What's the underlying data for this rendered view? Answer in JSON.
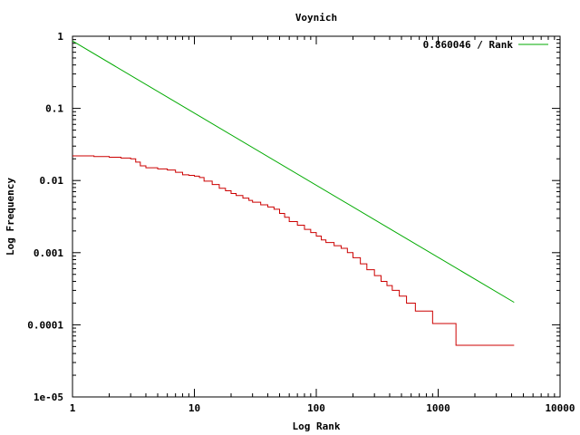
{
  "chart_data": {
    "type": "line",
    "title": "Voynich",
    "xlabel": "Log Rank",
    "ylabel": "Log Frequency",
    "x_scale": "log",
    "y_scale": "log",
    "xlim": [
      1,
      10000
    ],
    "ylim": [
      1e-05,
      1
    ],
    "x_ticks": [
      1,
      10,
      100,
      1000,
      10000
    ],
    "x_tick_labels": [
      "1",
      "10",
      "100",
      "1000",
      "10000"
    ],
    "y_ticks": [
      1,
      0.1,
      0.01,
      0.001,
      0.0001,
      1e-05
    ],
    "y_tick_labels": [
      "1",
      "0.1",
      "0.01",
      "0.001",
      "0.0001",
      "1e-05"
    ],
    "grid": false,
    "legend_position": "top-right",
    "series": [
      {
        "name": "",
        "color": "#cc0000",
        "step": true,
        "x": [
          1,
          1.5,
          2,
          2.5,
          3,
          3.3,
          3.6,
          4,
          5,
          6,
          7,
          8,
          9,
          10,
          11,
          12,
          14,
          16,
          18,
          20,
          22,
          25,
          28,
          30,
          35,
          40,
          45,
          50,
          55,
          60,
          70,
          80,
          90,
          100,
          110,
          120,
          140,
          160,
          180,
          200,
          230,
          260,
          300,
          340,
          380,
          420,
          480,
          550,
          650,
          900,
          1400,
          4200
        ],
        "y": [
          0.022,
          0.0215,
          0.021,
          0.0205,
          0.02,
          0.018,
          0.016,
          0.015,
          0.0145,
          0.014,
          0.013,
          0.012,
          0.0118,
          0.0115,
          0.011,
          0.0098,
          0.0088,
          0.0078,
          0.0072,
          0.0066,
          0.0062,
          0.0057,
          0.0053,
          0.005,
          0.0046,
          0.0043,
          0.004,
          0.0035,
          0.0031,
          0.0027,
          0.0024,
          0.0021,
          0.0019,
          0.0017,
          0.0015,
          0.00138,
          0.00125,
          0.00115,
          0.001,
          0.00085,
          0.0007,
          0.00058,
          0.00048,
          0.0004,
          0.00035,
          0.0003,
          0.00025,
          0.0002,
          0.000155,
          0.000104,
          5.2e-05,
          5.2e-05
        ]
      },
      {
        "name": "0.860046 / Rank",
        "color": "#00aa00",
        "step": false,
        "x": [
          1,
          4200
        ],
        "y": [
          0.860046,
          0.000204773
        ]
      }
    ]
  }
}
